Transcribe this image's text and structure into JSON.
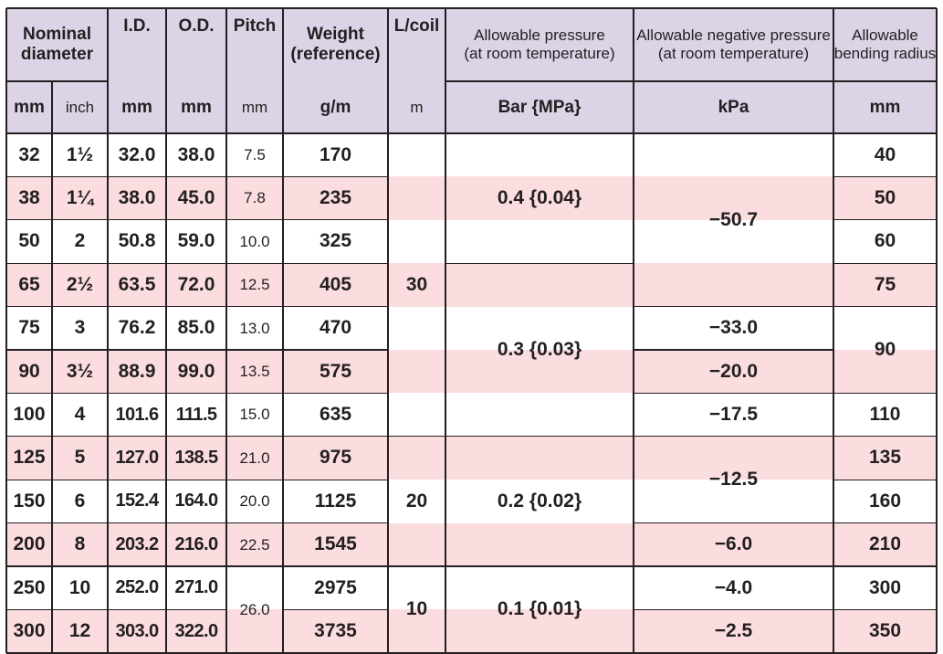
{
  "colors": {
    "header_bg": "#dcd3e7",
    "pink_row": "#fbdde0",
    "white_row": "#ffffff",
    "grid": "#231f20",
    "text": "#231f20"
  },
  "headers": {
    "nominal": [
      "Nominal",
      "diameter"
    ],
    "id": "I.D.",
    "od": "O.D.",
    "pitch": "Pitch",
    "weight": [
      "Weight",
      "(reference)"
    ],
    "lcoil": "L/coil",
    "pressure": [
      "Allowable pressure",
      "(at room temperature)"
    ],
    "neg_pressure": [
      "Allowable negative pressure",
      "(at room temperature)"
    ],
    "bending": [
      "Allowable",
      "bending radius"
    ]
  },
  "units": {
    "mm": "mm",
    "inch": "inch",
    "id": "mm",
    "od": "mm",
    "pitch": "mm",
    "weight": "g/m",
    "lcoil": "m",
    "pressure": "Bar {MPa}",
    "neg_pressure": "kPa",
    "bending": "mm"
  },
  "rows": [
    {
      "mm": "32",
      "inch": "1½",
      "id": "32.0",
      "od": "38.0",
      "pitch": "7.5",
      "weight": "170",
      "bend": "40"
    },
    {
      "mm": "38",
      "inch": "1¼",
      "id": "38.0",
      "od": "45.0",
      "pitch": "7.8",
      "weight": "235",
      "bend": "50"
    },
    {
      "mm": "50",
      "inch": "2",
      "id": "50.8",
      "od": "59.0",
      "pitch": "10.0",
      "weight": "325",
      "bend": "60"
    },
    {
      "mm": "65",
      "inch": "2½",
      "id": "63.5",
      "od": "72.0",
      "pitch": "12.5",
      "weight": "405",
      "bend": "75"
    },
    {
      "mm": "75",
      "inch": "3",
      "id": "76.2",
      "od": "85.0",
      "pitch": "13.0",
      "weight": "470",
      "bend": ""
    },
    {
      "mm": "90",
      "inch": "3½",
      "id": "88.9",
      "od": "99.0",
      "pitch": "13.5",
      "weight": "575",
      "bend": ""
    },
    {
      "mm": "100",
      "inch": "4",
      "id": "101.6",
      "od": "111.5",
      "pitch": "15.0",
      "weight": "635",
      "bend": "110"
    },
    {
      "mm": "125",
      "inch": "5",
      "id": "127.0",
      "od": "138.5",
      "pitch": "21.0",
      "weight": "975",
      "bend": "135"
    },
    {
      "mm": "150",
      "inch": "6",
      "id": "152.4",
      "od": "164.0",
      "pitch": "20.0",
      "weight": "1125",
      "bend": "160"
    },
    {
      "mm": "200",
      "inch": "8",
      "id": "203.2",
      "od": "216.0",
      "pitch": "22.5",
      "weight": "1545",
      "bend": "210"
    },
    {
      "mm": "250",
      "inch": "10",
      "id": "252.0",
      "od": "271.0",
      "pitch": "",
      "weight": "2975",
      "bend": "300"
    },
    {
      "mm": "300",
      "inch": "12",
      "id": "303.0",
      "od": "322.0",
      "pitch": "",
      "weight": "3735",
      "bend": "350"
    }
  ],
  "merged": {
    "pitch_250_300": "26.0",
    "lcoil": [
      "30",
      "20",
      "10"
    ],
    "pressure": [
      "0.4 {0.04}",
      "0.3 {0.03}",
      "0.2 {0.02}",
      "0.1 {0.01}"
    ],
    "neg_pressure": [
      "−50.7",
      "−33.0",
      "−20.0",
      "−17.5",
      "−12.5",
      "−6.0",
      "−4.0",
      "−2.5"
    ],
    "bend_75_90": "90"
  }
}
